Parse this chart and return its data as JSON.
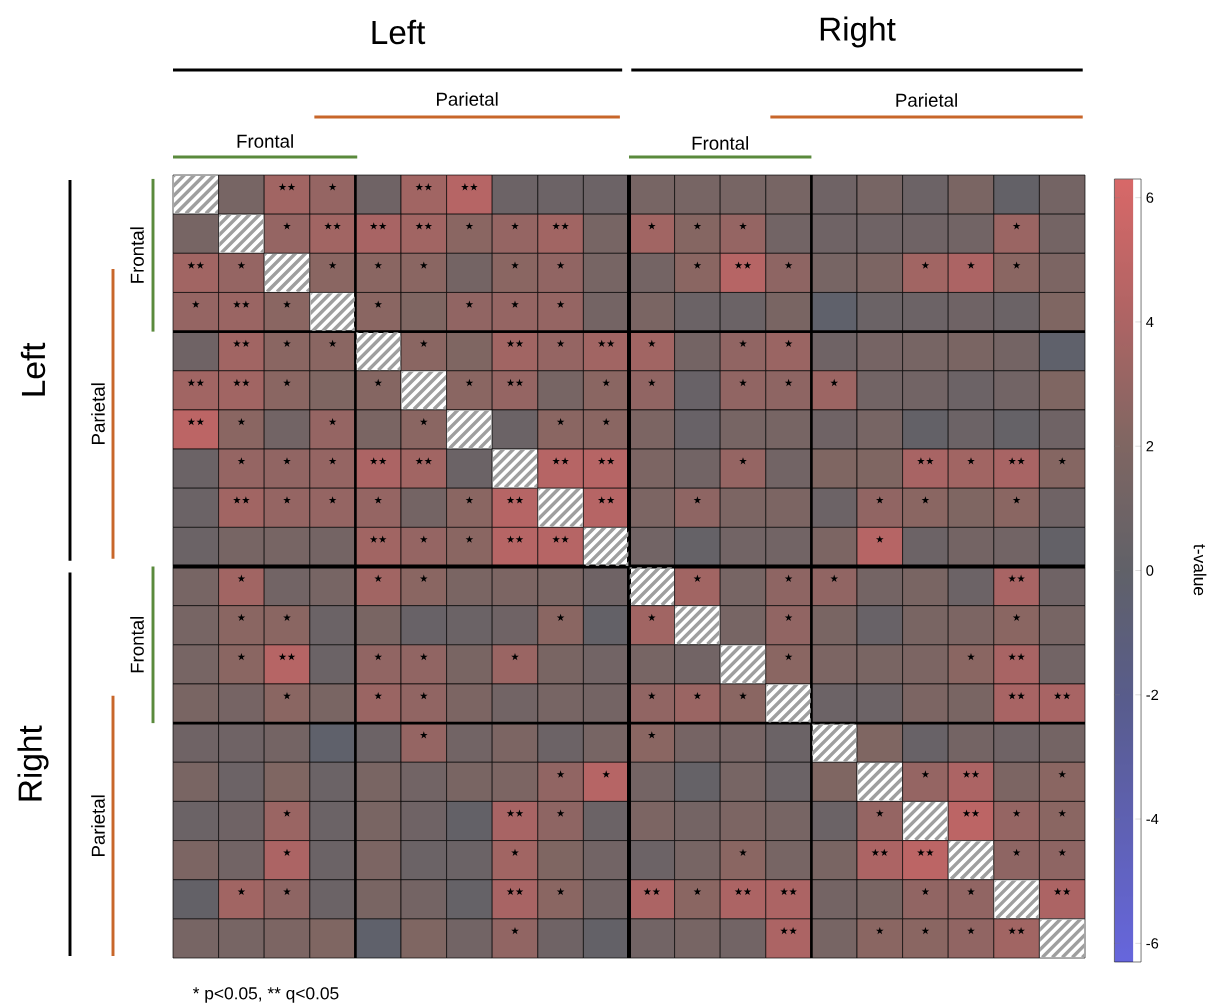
{
  "chart_data": {
    "type": "heatmap",
    "categories": [
      null,
      null,
      null,
      null,
      null,
      null,
      null,
      null,
      null,
      null,
      null,
      null,
      null,
      null,
      null,
      null,
      null,
      null,
      null,
      null
    ],
    "y_categories": [
      null,
      null,
      null,
      null,
      null,
      null,
      null,
      null,
      null,
      null,
      null,
      null,
      null,
      null,
      null,
      null,
      null,
      null,
      null,
      null
    ],
    "cells": [
      [
        null,
        1.5,
        3.5,
        3,
        1,
        3.5,
        4.5,
        0.8,
        0.8,
        0.8,
        1.5,
        1.5,
        1.5,
        1.5,
        1,
        1.5,
        0.8,
        1.7,
        0.2,
        1.3
      ],
      [
        1.5,
        null,
        3,
        3.5,
        3.8,
        3.5,
        2.5,
        3,
        3.5,
        1.5,
        3.5,
        2.3,
        3,
        1.2,
        1,
        1,
        1,
        1.2,
        3.2,
        1.3
      ],
      [
        3.5,
        3,
        null,
        2.5,
        2.5,
        2.5,
        1.3,
        2.5,
        2.8,
        1.5,
        1.3,
        2.5,
        4.5,
        2.7,
        1.5,
        1.8,
        3.5,
        4,
        2.5,
        1.8
      ],
      [
        3,
        3.2,
        2.5,
        null,
        2.5,
        2,
        2.8,
        3,
        3,
        1.3,
        1.7,
        0.7,
        0.7,
        1.6,
        -0.2,
        0.7,
        0.8,
        1,
        0.7,
        2
      ],
      [
        1,
        3.5,
        2.5,
        2.5,
        null,
        2.5,
        2,
        3.5,
        3,
        3.5,
        3.5,
        1.3,
        2.8,
        3.2,
        1,
        1.4,
        1.5,
        1.7,
        1.3,
        -0.2
      ],
      [
        3.5,
        3.5,
        2.5,
        2,
        2.3,
        null,
        2.5,
        3,
        1.5,
        2.5,
        2.8,
        0.5,
        2.8,
        2.7,
        3.3,
        1.2,
        1.2,
        0.8,
        1.2,
        2
      ],
      [
        4.8,
        2.5,
        1.2,
        3,
        1.7,
        2.5,
        null,
        0.7,
        2.5,
        2.5,
        1.8,
        0.5,
        1.5,
        1.5,
        1,
        1.5,
        0.2,
        0.8,
        0.3,
        1
      ],
      [
        0.7,
        3,
        2.8,
        3,
        4,
        3.5,
        0.7,
        null,
        4.5,
        4.5,
        1.8,
        1.2,
        3,
        1.2,
        2,
        2,
        3.8,
        3.5,
        3.8,
        2.3
      ],
      [
        0.7,
        3.5,
        3,
        3,
        3,
        1.3,
        2.5,
        4.5,
        null,
        4.5,
        1.8,
        2.7,
        1.8,
        1.8,
        0.8,
        2.8,
        2.5,
        2,
        2.5,
        1
      ],
      [
        0.7,
        1.5,
        1.5,
        1.3,
        3.5,
        3,
        2.5,
        4.5,
        4.5,
        null,
        1.2,
        0.3,
        1.2,
        1.2,
        1.8,
        4.5,
        0.8,
        1.3,
        1.2,
        0.2
      ],
      [
        1.5,
        3.5,
        1.2,
        1.5,
        3.5,
        2.5,
        1.7,
        1.8,
        1.7,
        1,
        null,
        3.5,
        1.5,
        2.7,
        2.8,
        1.3,
        1.6,
        0.8,
        3.8,
        1
      ],
      [
        1.5,
        2.5,
        2.5,
        0.7,
        1.6,
        0.5,
        0.7,
        1,
        2.5,
        0.2,
        3.5,
        null,
        1.5,
        2.8,
        1.6,
        0.5,
        1.6,
        1.8,
        2.5,
        1.5
      ],
      [
        1.5,
        2.5,
        4.5,
        0.7,
        2.8,
        2.8,
        1.6,
        3.2,
        1.6,
        1.2,
        1.5,
        1.2,
        null,
        2.5,
        1.8,
        1.6,
        1.8,
        2.5,
        3.8,
        1.2
      ],
      [
        1.6,
        1.4,
        2.5,
        1.6,
        3.2,
        2.8,
        1.8,
        1.2,
        1.5,
        1.3,
        2.8,
        3.2,
        2.5,
        null,
        0.8,
        0.8,
        1.8,
        1.6,
        3.8,
        3.8
      ],
      [
        1,
        1,
        1.3,
        -0.2,
        0.8,
        3,
        1.2,
        1.8,
        0.8,
        1.5,
        2.5,
        1.4,
        1.4,
        0.7,
        null,
        2,
        0.5,
        1.3,
        1,
        1.3
      ],
      [
        1.6,
        0.8,
        2,
        0.7,
        1.6,
        1.2,
        1.6,
        1.8,
        2.8,
        4.5,
        1.3,
        0.3,
        1.5,
        0.7,
        2,
        null,
        3,
        4,
        1.8,
        2.5
      ],
      [
        0.7,
        1,
        3.2,
        0.7,
        1.6,
        1,
        0.2,
        3.8,
        2.7,
        0.7,
        1.8,
        1.3,
        1.8,
        1.5,
        0.7,
        3,
        null,
        4.8,
        3,
        2.5
      ],
      [
        1.8,
        1.2,
        4,
        0.7,
        1.8,
        0.7,
        0.7,
        3.5,
        2,
        1.2,
        0.8,
        1.5,
        2.5,
        1.5,
        1.6,
        4,
        4.8,
        null,
        2.7,
        2.7
      ],
      [
        0.2,
        3.5,
        2.7,
        0.7,
        1.6,
        1.3,
        0.3,
        3.8,
        2.5,
        1.2,
        4,
        2.5,
        4,
        4,
        1.3,
        1.6,
        2.8,
        2.8,
        null,
        4
      ],
      [
        1.5,
        1.5,
        1.8,
        2,
        -0.2,
        2,
        1.2,
        2.8,
        1,
        0.2,
        1.2,
        1.5,
        1.2,
        4,
        1.5,
        2.5,
        2.5,
        2.8,
        3.5,
        null
      ]
    ],
    "cell_labels": [
      [
        null,
        null,
        "★★",
        "★",
        null,
        "★★",
        "★★",
        null,
        null,
        null,
        null,
        null,
        null,
        null,
        null,
        null,
        null,
        null,
        null,
        null
      ],
      [
        null,
        null,
        "★",
        "★★",
        "★★",
        "★★",
        "★",
        "★",
        "★★",
        null,
        "★",
        "★",
        "★",
        null,
        null,
        null,
        null,
        null,
        "★",
        null
      ],
      [
        "★★",
        "★",
        null,
        "★",
        "★",
        "★",
        null,
        "★",
        "★",
        null,
        null,
        "★",
        "★★",
        "★",
        null,
        null,
        "★",
        "★",
        "★",
        null
      ],
      [
        "★",
        "★★",
        "★",
        null,
        "★",
        null,
        "★",
        "★",
        "★",
        null,
        null,
        null,
        null,
        null,
        null,
        null,
        null,
        null,
        null,
        null
      ],
      [
        null,
        "★★",
        "★",
        "★",
        null,
        "★",
        null,
        "★★",
        "★",
        "★★",
        "★",
        null,
        "★",
        "★",
        null,
        null,
        null,
        null,
        null,
        null
      ],
      [
        "★★",
        "★★",
        "★",
        null,
        "★",
        null,
        "★",
        "★★",
        null,
        "★",
        "★",
        null,
        "★",
        "★",
        "★",
        null,
        null,
        null,
        null,
        null
      ],
      [
        "★★",
        "★",
        null,
        "★",
        null,
        "★",
        null,
        null,
        "★",
        "★",
        null,
        null,
        null,
        null,
        null,
        null,
        null,
        null,
        null,
        null
      ],
      [
        null,
        "★",
        "★",
        "★",
        "★★",
        "★★",
        null,
        null,
        "★★",
        "★★",
        null,
        null,
        "★",
        null,
        null,
        null,
        "★★",
        "★",
        "★★",
        "★"
      ],
      [
        null,
        "★★",
        "★",
        "★",
        "★",
        null,
        "★",
        "★★",
        null,
        "★★",
        null,
        "★",
        null,
        null,
        null,
        "★",
        "★",
        null,
        "★",
        null
      ],
      [
        null,
        null,
        null,
        null,
        "★★",
        "★",
        "★",
        "★★",
        "★★",
        null,
        null,
        null,
        null,
        null,
        null,
        "★",
        null,
        null,
        null,
        null
      ],
      [
        null,
        "★",
        null,
        null,
        "★",
        "★",
        null,
        null,
        null,
        null,
        null,
        "★",
        null,
        "★",
        "★",
        null,
        null,
        null,
        "★★",
        null
      ],
      [
        null,
        "★",
        "★",
        null,
        null,
        null,
        null,
        null,
        "★",
        null,
        "★",
        null,
        null,
        "★",
        null,
        null,
        null,
        null,
        "★",
        null
      ],
      [
        null,
        "★",
        "★★",
        null,
        "★",
        "★",
        null,
        "★",
        null,
        null,
        null,
        null,
        null,
        "★",
        null,
        null,
        null,
        "★",
        "★★",
        null
      ],
      [
        null,
        null,
        "★",
        null,
        "★",
        "★",
        null,
        null,
        null,
        null,
        "★",
        "★",
        "★",
        null,
        null,
        null,
        null,
        null,
        "★★",
        "★★"
      ],
      [
        null,
        null,
        null,
        null,
        null,
        "★",
        null,
        null,
        null,
        null,
        "★",
        null,
        null,
        null,
        null,
        null,
        null,
        null,
        null,
        null
      ],
      [
        null,
        null,
        null,
        null,
        null,
        null,
        null,
        null,
        "★",
        "★",
        null,
        null,
        null,
        null,
        null,
        null,
        "★",
        "★★",
        null,
        "★"
      ],
      [
        null,
        null,
        "★",
        null,
        null,
        null,
        null,
        "★★",
        "★",
        null,
        null,
        null,
        null,
        null,
        null,
        "★",
        null,
        "★★",
        "★",
        "★"
      ],
      [
        null,
        null,
        "★",
        null,
        null,
        null,
        null,
        "★",
        null,
        null,
        null,
        null,
        "★",
        null,
        null,
        "★★",
        "★★",
        null,
        "★",
        "★"
      ],
      [
        null,
        "★",
        "★",
        null,
        null,
        null,
        null,
        "★★",
        "★",
        null,
        "★★",
        "★",
        "★★",
        "★★",
        null,
        null,
        "★",
        "★",
        null,
        "★★"
      ],
      [
        null,
        null,
        null,
        null,
        null,
        null,
        null,
        "★",
        null,
        null,
        null,
        null,
        null,
        "★★",
        null,
        "★",
        "★",
        "★",
        "★★",
        null
      ]
    ],
    "clim": [
      -6.3,
      6.3
    ],
    "cticks": [
      -6,
      -4,
      -2,
      0,
      2,
      4,
      6
    ],
    "clabel": "t-value",
    "annotations": [
      "Left",
      "Right",
      "Frontal",
      "Parietal",
      "Frontal",
      "Parietal",
      "Left",
      "Right",
      "Frontal",
      "Parietal",
      "Frontal",
      "Parietal",
      "* p<0.05, ** q<0.05"
    ]
  }
}
